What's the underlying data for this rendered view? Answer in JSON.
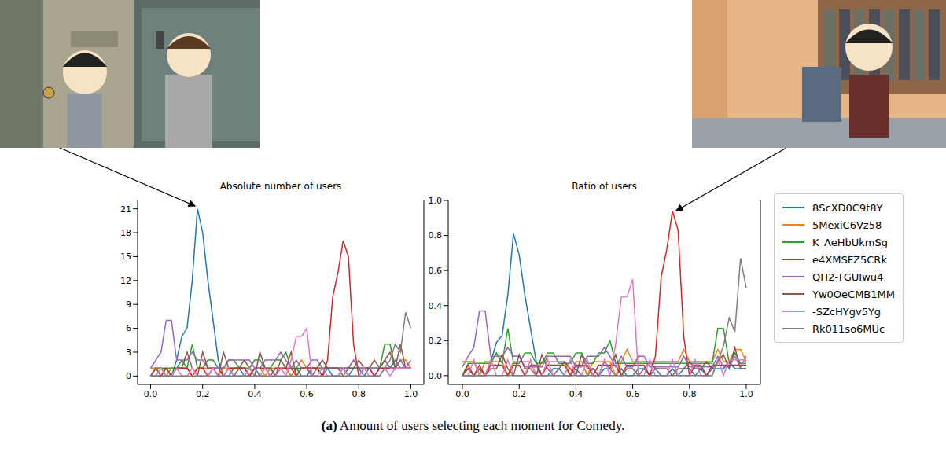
{
  "chart_data": [
    {
      "type": "line",
      "title": "Absolute number of users",
      "x": [
        0,
        0.02,
        0.04,
        0.06,
        0.08,
        0.1,
        0.12,
        0.14,
        0.16,
        0.18,
        0.2,
        0.22,
        0.24,
        0.26,
        0.28,
        0.3,
        0.32,
        0.34,
        0.36,
        0.38,
        0.4,
        0.42,
        0.44,
        0.46,
        0.48,
        0.5,
        0.52,
        0.54,
        0.56,
        0.58,
        0.6,
        0.62,
        0.64,
        0.66,
        0.68,
        0.7,
        0.72,
        0.74,
        0.76,
        0.78,
        0.8,
        0.82,
        0.84,
        0.86,
        0.88,
        0.9,
        0.92,
        0.94,
        0.96,
        0.98,
        1
      ],
      "xlim": [
        -0.05,
        1.05
      ],
      "xticks": [
        {
          "value": 0,
          "label": "0.0"
        },
        0.2,
        0.4,
        0.6,
        0.8,
        {
          "value": 1,
          "label": "1.0"
        }
      ],
      "ylim": [
        -1.05,
        22.05
      ],
      "yticks": [
        0,
        3,
        6,
        9,
        12,
        15,
        18,
        21
      ],
      "grid": false,
      "series": [
        {
          "name": "8ScXD0C9t8Y",
          "color": "#1f77b4",
          "values": [
            0,
            0,
            0,
            0,
            0,
            2,
            5,
            6,
            12,
            21,
            18,
            12,
            7,
            2,
            0,
            0,
            1,
            1,
            0,
            0,
            1,
            0,
            0,
            1,
            0,
            1,
            1,
            0,
            1,
            0,
            0,
            1,
            1,
            0,
            1,
            0,
            0,
            1,
            0,
            1,
            1,
            0,
            1,
            0,
            1,
            1,
            1,
            2,
            1,
            1,
            1
          ]
        },
        {
          "name": "5MexiC6Vz58",
          "color": "#ff7f0e",
          "values": [
            1,
            1,
            1,
            0,
            1,
            1,
            1,
            1,
            0,
            1,
            1,
            1,
            1,
            0,
            1,
            1,
            1,
            1,
            1,
            0,
            1,
            1,
            0,
            1,
            1,
            1,
            1,
            0,
            1,
            2,
            1,
            1,
            1,
            1,
            1,
            1,
            1,
            1,
            1,
            2,
            1,
            1,
            1,
            1,
            1,
            2,
            1,
            1,
            2,
            2,
            1
          ]
        },
        {
          "name": "K_AeHbUkmSg",
          "color": "#2ca02c",
          "values": [
            0,
            1,
            1,
            1,
            1,
            1,
            2,
            1,
            4,
            1,
            1,
            2,
            2,
            1,
            1,
            2,
            2,
            1,
            1,
            1,
            2,
            2,
            1,
            1,
            2,
            2,
            3,
            1,
            1,
            1,
            1,
            1,
            1,
            1,
            1,
            1,
            1,
            1,
            1,
            1,
            1,
            1,
            1,
            1,
            1,
            4,
            4,
            1,
            2,
            1,
            1
          ]
        },
        {
          "name": "e4XMSFZ5CRk",
          "color": "#d62728",
          "values": [
            0,
            1,
            0,
            1,
            0,
            1,
            1,
            1,
            0,
            1,
            1,
            0,
            1,
            1,
            0,
            1,
            1,
            1,
            1,
            0,
            1,
            1,
            1,
            0,
            1,
            1,
            1,
            1,
            0,
            1,
            1,
            1,
            1,
            0,
            2,
            10,
            13,
            17,
            15,
            4,
            0,
            1,
            1,
            0,
            1,
            1,
            1,
            1,
            1,
            1,
            1
          ]
        },
        {
          "name": "QH2-TGUIwu4",
          "color": "#9467bd",
          "values": [
            1,
            2,
            3,
            7,
            7,
            2,
            2,
            2,
            3,
            2,
            2,
            1,
            1,
            1,
            1,
            2,
            2,
            2,
            2,
            2,
            1,
            1,
            2,
            2,
            2,
            3,
            2,
            1,
            2,
            1,
            1,
            2,
            2,
            1,
            1,
            1,
            1,
            1,
            1,
            2,
            1,
            1,
            1,
            1,
            1,
            2,
            1,
            1,
            2,
            1,
            2
          ]
        },
        {
          "name": "Yw0OeCMB1MM",
          "color": "#8c564b",
          "values": [
            0,
            1,
            0,
            1,
            0,
            1,
            1,
            3,
            1,
            0,
            3,
            1,
            1,
            0,
            3,
            1,
            0,
            1,
            2,
            1,
            0,
            3,
            1,
            1,
            0,
            2,
            1,
            3,
            0,
            1,
            1,
            0,
            1,
            2,
            1,
            1,
            1,
            0,
            1,
            1,
            2,
            1,
            1,
            2,
            1,
            2,
            3,
            1,
            4,
            1,
            1
          ]
        },
        {
          "name": "-SZcHYgv5Yg",
          "color": "#e377c2",
          "values": [
            0,
            0,
            1,
            0,
            0,
            1,
            0,
            0,
            1,
            0,
            0,
            0,
            1,
            0,
            0,
            1,
            0,
            0,
            0,
            1,
            0,
            0,
            1,
            0,
            0,
            1,
            0,
            2,
            5,
            5,
            6,
            0,
            0,
            1,
            0,
            0,
            0,
            1,
            0,
            0,
            0,
            1,
            0,
            0,
            0,
            1,
            0,
            1,
            1,
            1,
            1
          ]
        },
        {
          "name": "Rk011so6MUc",
          "color": "#7f7f7f",
          "values": [
            0,
            0,
            0,
            0,
            0,
            0,
            0,
            0,
            0,
            0,
            0,
            0,
            0,
            0,
            0,
            0,
            0,
            0,
            0,
            0,
            0,
            0,
            0,
            0,
            0,
            0,
            0,
            0,
            0,
            0,
            0,
            0,
            0,
            0,
            0,
            0,
            0,
            0,
            0,
            0,
            0,
            0,
            0,
            0,
            0,
            1,
            2,
            4,
            3,
            8,
            6
          ]
        }
      ]
    },
    {
      "type": "line",
      "title": "Ratio of users",
      "x": [
        0,
        0.02,
        0.04,
        0.06,
        0.08,
        0.1,
        0.12,
        0.14,
        0.16,
        0.18,
        0.2,
        0.22,
        0.24,
        0.26,
        0.28,
        0.3,
        0.32,
        0.34,
        0.36,
        0.38,
        0.4,
        0.42,
        0.44,
        0.46,
        0.48,
        0.5,
        0.52,
        0.54,
        0.56,
        0.58,
        0.6,
        0.62,
        0.64,
        0.66,
        0.68,
        0.7,
        0.72,
        0.74,
        0.76,
        0.78,
        0.8,
        0.82,
        0.84,
        0.86,
        0.88,
        0.9,
        0.92,
        0.94,
        0.96,
        0.98,
        1
      ],
      "xlim": [
        -0.05,
        1.05
      ],
      "xticks": [
        {
          "value": 0,
          "label": "0.0"
        },
        0.2,
        0.4,
        0.6,
        0.8,
        {
          "value": 1,
          "label": "1.0"
        }
      ],
      "ylim": [
        -0.05,
        1.0
      ],
      "yticks": [
        {
          "value": 0,
          "label": "0.0"
        },
        0.2,
        0.4,
        0.6,
        0.8,
        {
          "value": 1,
          "label": "1.0"
        }
      ],
      "grid": false,
      "legend": "right",
      "series": [
        {
          "name": "8ScXD0C9t8Y",
          "color": "#1f77b4",
          "values": [
            0,
            0,
            0,
            0,
            0,
            0.08,
            0.19,
            0.23,
            0.46,
            0.81,
            0.69,
            0.46,
            0.27,
            0.08,
            0,
            0,
            0.04,
            0.04,
            0,
            0,
            0.04,
            0,
            0,
            0.04,
            0,
            0.04,
            0.04,
            0,
            0.04,
            0,
            0,
            0.04,
            0.04,
            0,
            0.04,
            0,
            0,
            0.04,
            0,
            0.04,
            0.04,
            0,
            0.04,
            0,
            0.04,
            0.04,
            0.04,
            0.08,
            0.04,
            0.04,
            0.04
          ]
        },
        {
          "name": "5MexiC6Vz58",
          "color": "#ff7f0e",
          "values": [
            0.08,
            0.08,
            0.08,
            0,
            0.08,
            0.08,
            0.08,
            0.08,
            0,
            0.08,
            0.08,
            0.08,
            0.08,
            0,
            0.08,
            0.08,
            0.08,
            0.08,
            0.08,
            0,
            0.08,
            0.08,
            0,
            0.08,
            0.08,
            0.08,
            0.08,
            0,
            0.08,
            0.15,
            0.08,
            0.08,
            0.08,
            0.08,
            0.08,
            0.08,
            0.08,
            0.08,
            0.08,
            0.15,
            0.08,
            0.08,
            0.08,
            0.08,
            0.08,
            0.15,
            0.08,
            0.08,
            0.15,
            0.15,
            0.08
          ]
        },
        {
          "name": "K_AeHbUkmSg",
          "color": "#2ca02c",
          "values": [
            0,
            0.07,
            0.07,
            0.07,
            0.07,
            0.07,
            0.13,
            0.07,
            0.27,
            0.07,
            0.07,
            0.13,
            0.13,
            0.07,
            0.07,
            0.13,
            0.13,
            0.07,
            0.07,
            0.07,
            0.13,
            0.13,
            0.07,
            0.07,
            0.13,
            0.13,
            0.2,
            0.07,
            0.07,
            0.07,
            0.07,
            0.07,
            0.07,
            0.07,
            0.07,
            0.07,
            0.07,
            0.07,
            0.07,
            0.07,
            0.07,
            0.07,
            0.07,
            0.07,
            0.07,
            0.27,
            0.27,
            0.07,
            0.13,
            0.07,
            0.07
          ]
        },
        {
          "name": "e4XMSFZ5CRk",
          "color": "#d62728",
          "values": [
            0,
            0.06,
            0,
            0.06,
            0,
            0.06,
            0.06,
            0.06,
            0,
            0.06,
            0.06,
            0,
            0.06,
            0.06,
            0,
            0.06,
            0.06,
            0.06,
            0.06,
            0,
            0.06,
            0.06,
            0.06,
            0,
            0.06,
            0.06,
            0.06,
            0.06,
            0,
            0.06,
            0.06,
            0.06,
            0.06,
            0,
            0.11,
            0.56,
            0.72,
            0.94,
            0.83,
            0.22,
            0,
            0.06,
            0.06,
            0,
            0.06,
            0.06,
            0.06,
            0.06,
            0.06,
            0.06,
            0.06
          ]
        },
        {
          "name": "QH2-TGUIwu4",
          "color": "#9467bd",
          "values": [
            0.05,
            0.11,
            0.16,
            0.37,
            0.37,
            0.11,
            0.11,
            0.11,
            0.16,
            0.11,
            0.11,
            0.05,
            0.05,
            0.05,
            0.05,
            0.11,
            0.11,
            0.11,
            0.11,
            0.11,
            0.05,
            0.05,
            0.11,
            0.11,
            0.11,
            0.16,
            0.11,
            0.05,
            0.11,
            0.05,
            0.05,
            0.11,
            0.11,
            0.05,
            0.05,
            0.05,
            0.05,
            0.05,
            0.05,
            0.11,
            0.05,
            0.05,
            0.05,
            0.05,
            0.05,
            0.11,
            0.05,
            0.05,
            0.11,
            0.05,
            0.11
          ]
        },
        {
          "name": "Yw0OeCMB1MM",
          "color": "#8c564b",
          "values": [
            0,
            0.04,
            0,
            0.04,
            0,
            0.04,
            0.04,
            0.12,
            0.04,
            0,
            0.12,
            0.04,
            0.04,
            0,
            0.12,
            0.04,
            0,
            0.04,
            0.08,
            0.04,
            0,
            0.12,
            0.04,
            0.04,
            0,
            0.08,
            0.04,
            0.12,
            0,
            0.04,
            0.04,
            0,
            0.04,
            0.08,
            0.04,
            0.04,
            0.04,
            0,
            0.04,
            0.04,
            0.08,
            0.04,
            0.04,
            0.08,
            0.04,
            0.08,
            0.12,
            0.04,
            0.16,
            0.04,
            0.04
          ]
        },
        {
          "name": "-SZcHYgv5Yg",
          "color": "#e377c2",
          "values": [
            0,
            0,
            0.09,
            0,
            0,
            0.09,
            0,
            0,
            0.09,
            0,
            0,
            0,
            0.09,
            0,
            0,
            0.09,
            0,
            0,
            0,
            0.09,
            0,
            0,
            0.09,
            0,
            0,
            0.09,
            0,
            0.18,
            0.45,
            0.45,
            0.55,
            0,
            0,
            0.09,
            0,
            0,
            0,
            0.09,
            0,
            0,
            0,
            0.09,
            0,
            0,
            0,
            0.09,
            0,
            0.09,
            0.09,
            0.09,
            0.09
          ]
        },
        {
          "name": "Rk011so6MUc",
          "color": "#7f7f7f",
          "values": [
            0,
            0,
            0,
            0,
            0,
            0,
            0,
            0,
            0,
            0,
            0,
            0,
            0,
            0,
            0,
            0,
            0,
            0,
            0,
            0,
            0,
            0,
            0,
            0,
            0,
            0,
            0,
            0,
            0,
            0,
            0,
            0,
            0,
            0,
            0,
            0,
            0,
            0,
            0,
            0,
            0,
            0,
            0,
            0,
            0,
            0.08,
            0.17,
            0.33,
            0.25,
            0.67,
            0.5
          ]
        }
      ]
    }
  ],
  "caption_label": "(a)",
  "caption": "Amount of users selecting each moment for Comedy."
}
